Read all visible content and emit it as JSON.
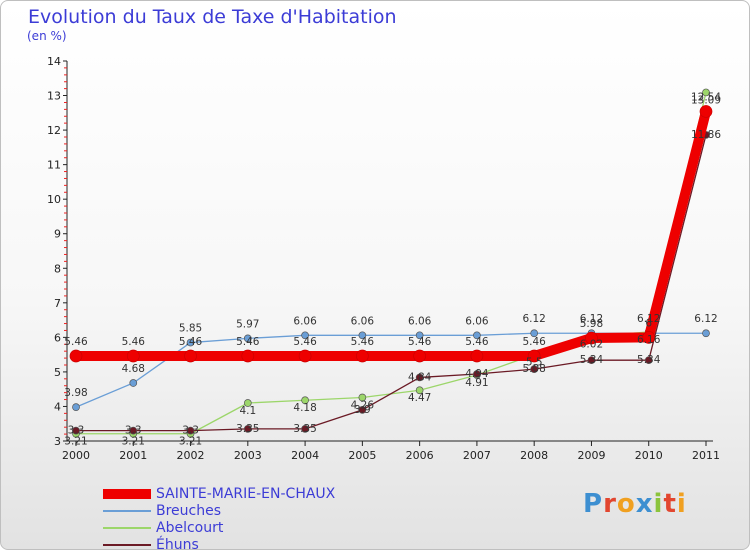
{
  "title": "Evolution du Taux de Taxe d'Habitation",
  "unit": "(en %)",
  "logo": "Proxiti",
  "chart_data": {
    "type": "line",
    "x": [
      "2000",
      "2001",
      "2002",
      "2003",
      "2004",
      "2005",
      "2006",
      "2007",
      "2008",
      "2009",
      "2010",
      "2011"
    ],
    "ylim": [
      3,
      14
    ],
    "yticks": [
      3,
      4,
      5,
      6,
      7,
      8,
      9,
      10,
      11,
      12,
      13,
      14
    ],
    "grid": false,
    "legend_position": "bottom-left",
    "series": [
      {
        "name": "SAINTE-MARIE-EN-CHAUX",
        "color": "#ee0000",
        "values": [
          5.46,
          5.46,
          5.46,
          5.46,
          5.46,
          5.46,
          5.46,
          5.46,
          5.46,
          5.98,
          6.0,
          12.54
        ],
        "labels": [
          "5.46",
          "5.46",
          "5.46",
          "5.46",
          "5.46",
          "5.46",
          "5.46",
          "5.46",
          "5.46",
          "5.98",
          "6",
          "12.54"
        ]
      },
      {
        "name": "Breuches",
        "color": "#6a9ed6",
        "values": [
          3.98,
          4.68,
          5.85,
          5.97,
          6.06,
          6.06,
          6.06,
          6.06,
          6.12,
          6.12,
          6.12,
          6.12
        ],
        "labels": [
          "3.98",
          "4.68",
          "5.85",
          "5.97",
          "6.06",
          "6.06",
          "6.06",
          "6.06",
          "6.12",
          "6.12",
          "6.12",
          "6.12"
        ]
      },
      {
        "name": "Abelcourt",
        "color": "#9cd66a",
        "values": [
          3.21,
          3.21,
          3.21,
          4.1,
          4.18,
          4.26,
          4.47,
          4.91,
          5.5,
          6.02,
          6.16,
          13.09
        ],
        "labels": [
          "3.21",
          "3.21",
          "3.21",
          "4.1",
          "4.18",
          "4.26",
          "4.47",
          "4.91",
          "5.5",
          "6.02",
          "6.16",
          "13.09"
        ]
      },
      {
        "name": "Éhuns",
        "color": "#6b1a25",
        "values": [
          3.3,
          3.3,
          3.3,
          3.35,
          3.35,
          3.9,
          4.84,
          4.94,
          5.08,
          5.34,
          5.34,
          11.86
        ],
        "labels": [
          "3.3",
          "3.3",
          "3.3",
          "3.35",
          "3.35",
          "3.9",
          "4.84",
          "4.94",
          "5.08",
          "5.34",
          "5.34",
          "11.86"
        ]
      }
    ]
  }
}
